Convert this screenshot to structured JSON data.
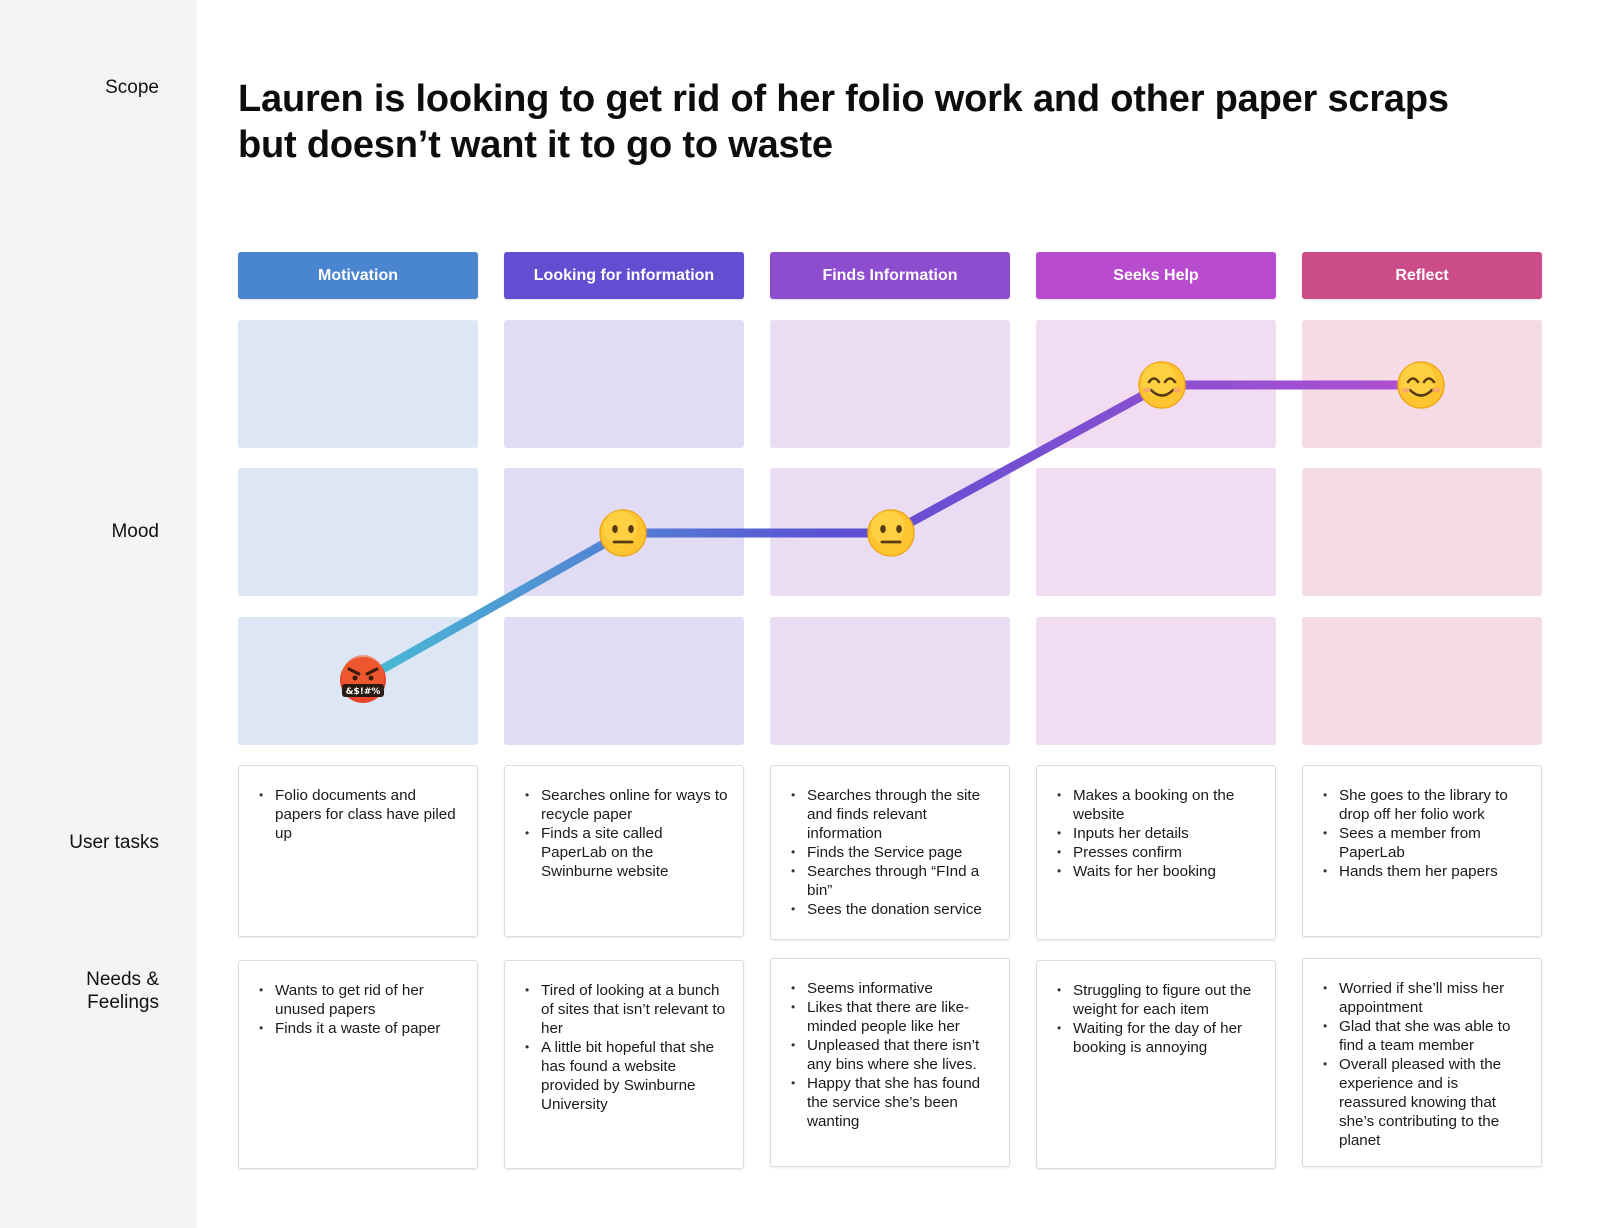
{
  "sidebar": {
    "scope_label": "Scope",
    "mood_label": "Mood",
    "tasks_label": "User tasks",
    "needs_label_line1": "Needs &",
    "needs_label_line2": "Feelings"
  },
  "title": {
    "line1": "Lauren is looking to get rid of her folio work and other paper scraps",
    "line2": "but doesn’t want it to go to waste"
  },
  "stages": [
    {
      "label": "Motivation",
      "color": "#4a86d0",
      "tint": "#dce6f5",
      "mood": "angry",
      "tasks": [
        "Folio documents and papers for class have piled up"
      ],
      "needs": [
        "Wants to get rid of her unused papers",
        "Finds it a waste of paper"
      ]
    },
    {
      "label": "Looking for information",
      "color": "#634ed1",
      "tint": "#e1dcf4",
      "mood": "neutral",
      "tasks": [
        "Searches online for ways to recycle paper",
        "Finds a site called PaperLab on the Swinburne website"
      ],
      "needs": [
        "Tired of looking at a bunch of sites that isn’t relevant to her",
        "A little bit hopeful that she has found a website provided by Swinburne University"
      ]
    },
    {
      "label": "Finds Information",
      "color": "#8e4ccf",
      "tint": "#e9dcf3",
      "mood": "neutral",
      "tasks": [
        "Searches through the site and finds relevant information",
        "Finds the Service page",
        "Searches through “FInd a bin”",
        "Sees the donation service"
      ],
      "needs": [
        "Seems informative",
        "Likes that there are like-minded people like her",
        "Unpleased that there isn’t any bins where she lives.",
        "Happy that she has found the service she’s been wanting"
      ]
    },
    {
      "label": "Seeks Help",
      "color": "#b94bcf",
      "tint": "#f1dcf2",
      "mood": "happy",
      "tasks": [
        "Makes a booking on the website",
        "Inputs her details",
        "Presses confirm",
        "Waits for her booking"
      ],
      "needs": [
        "Struggling to figure out the weight for each item",
        "Waiting for the day of her booking is annoying"
      ]
    },
    {
      "label": "Reflect",
      "color": "#cc4c8a",
      "tint": "#f4dbe6",
      "mood": "happy",
      "tasks": [
        "She goes to the library to drop off her folio work",
        "Sees a member from PaperLab",
        "Hands them her papers"
      ],
      "needs": [
        "Worried if she’ll miss her appointment",
        "Glad that she was able to find a team member",
        "Overall pleased with the experience and is reassured knowing that she’s contributing to the planet"
      ]
    }
  ],
  "mood_levels": {
    "happy": 2,
    "neutral": 1,
    "angry": 0
  },
  "angry_emoji_text": "&$!#%",
  "colors": {
    "line_start": "#48bcd4",
    "line_mid": "#5b4fd3",
    "line_end": "#b04fd0"
  }
}
